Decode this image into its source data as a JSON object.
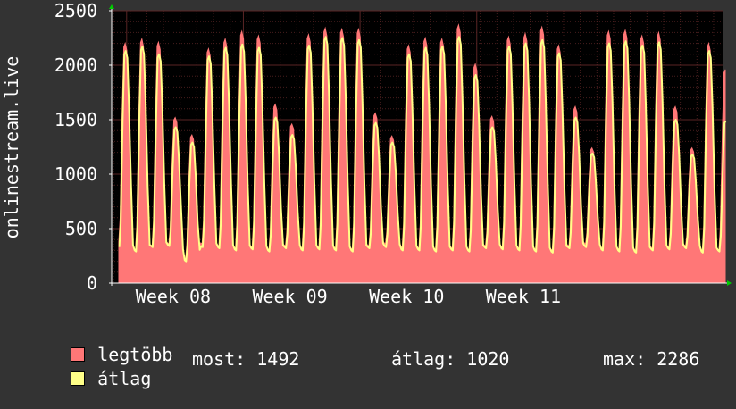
{
  "chart_data": {
    "type": "area",
    "ylabel": "onlinestream.live",
    "ylim": [
      0,
      2500
    ],
    "yticks": [
      0,
      500,
      1000,
      1500,
      2000,
      2500
    ],
    "xticks": [
      "Week 08",
      "Week 09",
      "Week 10",
      "Week 11"
    ],
    "grid": true,
    "colors": {
      "background": "#333333",
      "plot_background": "#000000",
      "grid": "#5a2525",
      "text": "#ffffff",
      "max_fill": "#ff7777",
      "avg_line": "#ffff88"
    },
    "x_days": [
      0,
      1,
      2,
      3,
      4,
      5,
      6,
      7,
      8,
      9,
      10,
      11,
      12,
      13,
      14,
      15,
      16,
      17,
      18,
      19,
      20,
      21,
      22,
      23,
      24,
      25,
      26,
      27,
      28,
      29,
      30,
      31,
      32,
      33,
      34,
      35,
      36
    ],
    "series": [
      {
        "name": "legtöbb",
        "peaks": [
          2200,
          2240,
          2210,
          1520,
          1360,
          2150,
          2240,
          2310,
          2270,
          1640,
          1460,
          2280,
          2340,
          2330,
          2330,
          1560,
          1350,
          2180,
          2250,
          2240,
          2370,
          2010,
          1530,
          2260,
          2290,
          2350,
          2180,
          1620,
          1240,
          2310,
          2320,
          2270,
          2300,
          1620,
          1240,
          2200,
          1960
        ],
        "troughs": [
          380,
          300,
          340,
          360,
          220,
          360,
          340,
          320,
          330,
          300,
          340,
          320,
          330,
          320,
          310,
          340,
          360,
          330,
          320,
          310,
          320,
          300,
          340,
          330,
          320,
          310,
          300,
          340,
          360,
          320,
          310,
          300,
          320,
          330,
          340,
          300,
          300
        ]
      },
      {
        "name": "átlag",
        "peaks": [
          2130,
          2170,
          2100,
          1430,
          1290,
          2080,
          2160,
          2190,
          2160,
          1520,
          1360,
          2180,
          2260,
          2250,
          2230,
          1470,
          1290,
          2100,
          2160,
          2170,
          2260,
          1910,
          1430,
          2170,
          2200,
          2230,
          2110,
          1520,
          1190,
          2200,
          2220,
          2180,
          2210,
          1500,
          1180,
          2130,
          1490
        ],
        "troughs": [
          330,
          290,
          330,
          340,
          200,
          330,
          320,
          300,
          310,
          290,
          320,
          300,
          310,
          300,
          290,
          320,
          330,
          300,
          300,
          290,
          300,
          290,
          320,
          310,
          300,
          290,
          280,
          320,
          330,
          300,
          290,
          280,
          300,
          310,
          320,
          280,
          290
        ]
      }
    ]
  },
  "legend": {
    "max_label": "legtöbb",
    "avg_label": "átlag",
    "max_color": "#ff7777",
    "avg_color": "#ffff88"
  },
  "stats": {
    "now": "most: 1492",
    "avg": "átlag: 1020",
    "max": "max: 2286"
  }
}
